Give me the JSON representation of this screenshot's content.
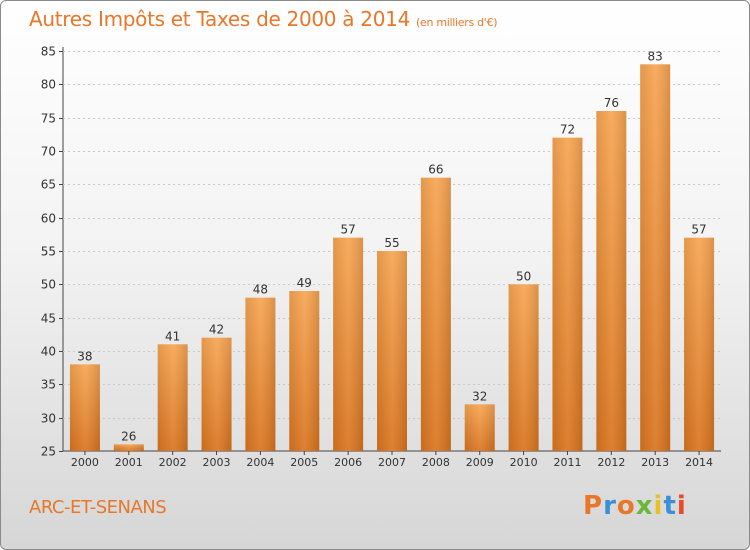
{
  "header": {
    "title": "Autres Impôts et Taxes de 2000 à 2014",
    "subtitle": "(en milliers d'€)"
  },
  "footer": {
    "commune": "ARC-ET-SENANS",
    "logo_text": "Proxiti",
    "logo_colors": [
      "#e8772a",
      "#3a8fd8",
      "#e8772a",
      "#6ab83a",
      "#e8c02a",
      "#3a8fd8",
      "#e84a2a"
    ]
  },
  "chart_data": {
    "type": "bar",
    "title": "Autres Impôts et Taxes de 2000 à 2014",
    "categories": [
      "2000",
      "2001",
      "2002",
      "2003",
      "2004",
      "2005",
      "2006",
      "2007",
      "2008",
      "2009",
      "2010",
      "2011",
      "2012",
      "2013",
      "2014"
    ],
    "values": [
      38,
      26,
      41,
      42,
      48,
      49,
      57,
      55,
      66,
      32,
      50,
      72,
      76,
      83,
      57
    ],
    "ylim": [
      25,
      85
    ],
    "yticks": [
      25,
      30,
      35,
      40,
      45,
      50,
      55,
      60,
      65,
      70,
      75,
      80,
      85
    ],
    "grid": true,
    "bar_color": "#f0913a"
  }
}
